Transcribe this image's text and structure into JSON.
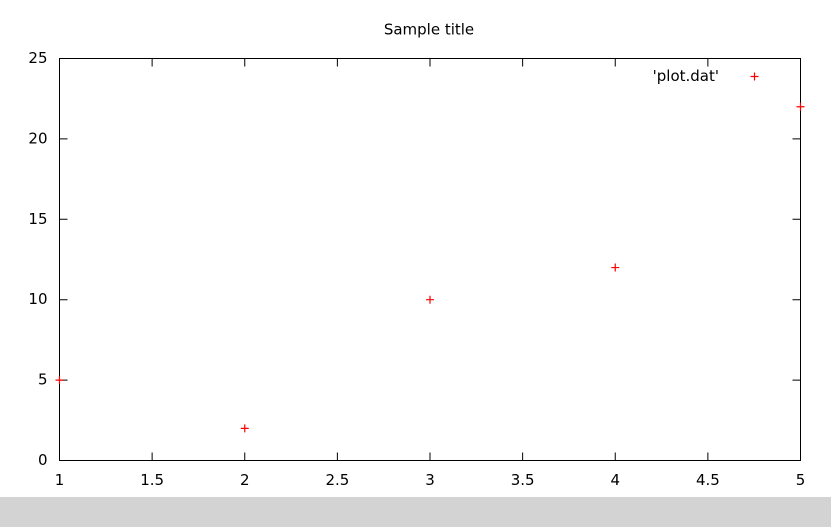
{
  "chart_data": {
    "type": "scatter",
    "title": "Sample title",
    "x": [
      1,
      2,
      3,
      4,
      5
    ],
    "series": [
      {
        "name": "'plot.dat'",
        "color": "#ff0000",
        "values": [
          5,
          2,
          10,
          12,
          22
        ]
      }
    ],
    "xlim": [
      1,
      5
    ],
    "xticks": [
      1,
      1.5,
      2,
      2.5,
      3,
      3.5,
      4,
      4.5,
      5
    ],
    "ylim": [
      0,
      25
    ],
    "yticks": [
      0,
      5,
      10,
      15,
      20,
      25
    ],
    "grid": false,
    "legend": "top-right"
  }
}
